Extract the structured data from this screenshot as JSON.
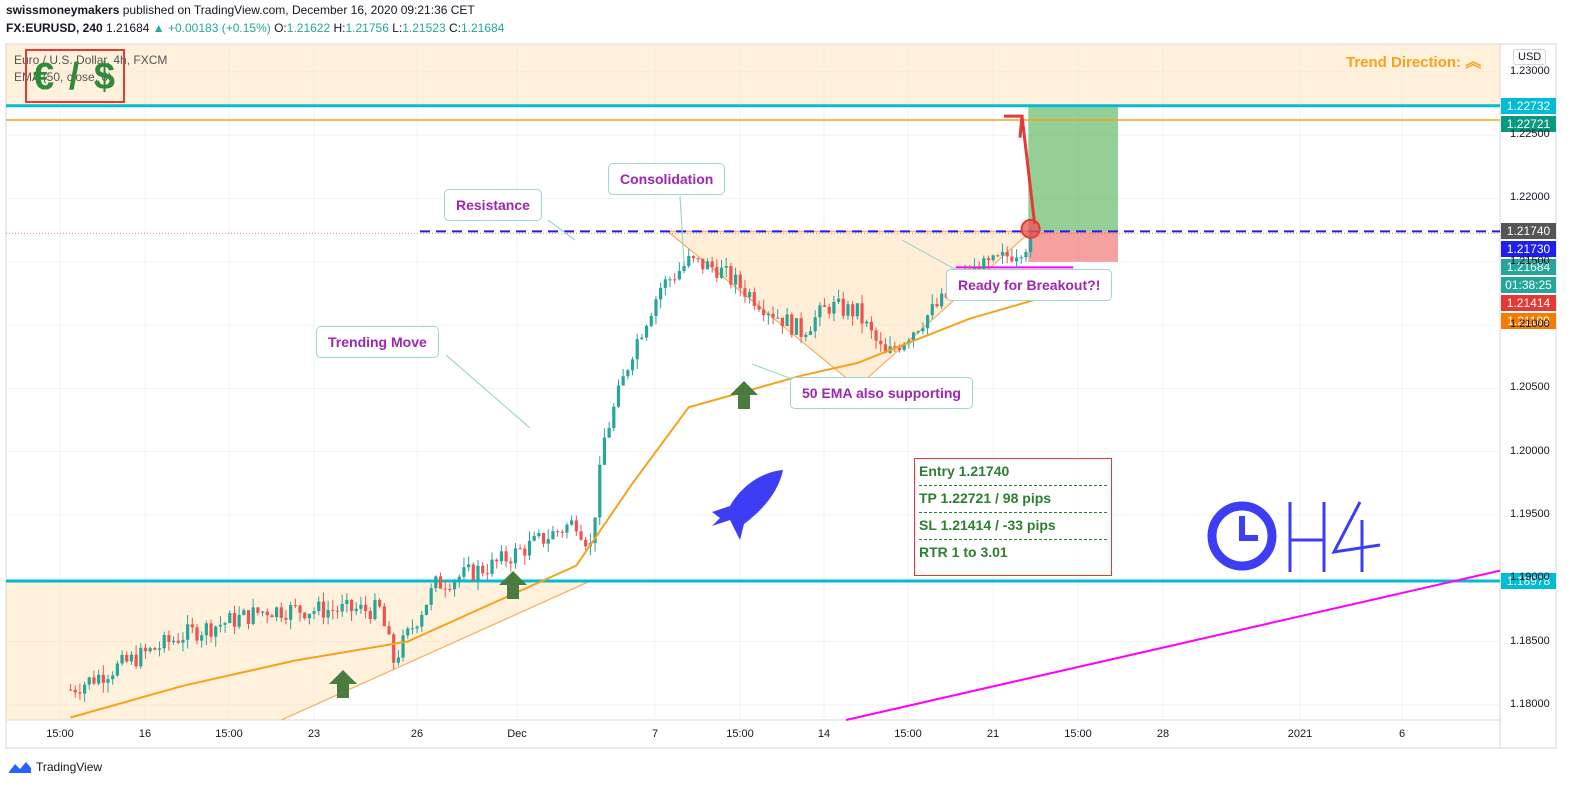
{
  "header": {
    "publisher": "swissmoneymakers",
    "published_text": "published on TradingView.com, December 16, 2020 09:21:36 CET",
    "symbol_line": "FX:EURUSD, 240",
    "last_price": "1.21684",
    "change": "▲ +0.00183 (+0.15%)",
    "ohlc": {
      "o_label": "O:",
      "o": "1.21622",
      "h_label": "H:",
      "h": "1.21756",
      "l_label": "L:",
      "l": "1.21523",
      "c_label": "C:",
      "c": "1.21684"
    }
  },
  "legend": {
    "instrument": "Euro / U.S. Dollar, 4h, FXCM",
    "indicator": "EMA (50, close, 0)",
    "pair_logo": "€ / $"
  },
  "trend_direction": "Trend Direction:",
  "currency_button": "USD",
  "annotations": {
    "resistance": "Resistance",
    "consolidation": "Consolidation",
    "trending_move": "Trending Move",
    "ema_support": "50 EMA also supporting",
    "breakout": "Ready for Breakout?!",
    "timeframe": "H4"
  },
  "trade": {
    "entry": "Entry 1.21740",
    "tp": "TP      1.22721 / 98 pips",
    "sl": "SL      1.21414 / -33 pips",
    "rtr": "RTR   1 to 3.01"
  },
  "footer": {
    "brand": "TradingView"
  },
  "colors": {
    "up": "#26a69a",
    "down": "#ef5350",
    "ema": "#f7a21b",
    "level": "#00bcd4",
    "magenta": "#ff00ff",
    "accent": "#9c27b0"
  },
  "chart_data": {
    "type": "candlestick",
    "ylim": [
      1.1788,
      1.2322
    ],
    "y_ticks": [
      "1.23000",
      "1.22500",
      "1.22000",
      "1.21500",
      "1.21000",
      "1.20500",
      "1.20000",
      "1.19500",
      "1.19000",
      "1.18500",
      "1.18000"
    ],
    "x_ticks": [
      "15:00",
      "16",
      "15:00",
      "23",
      "26",
      "Dec",
      "7",
      "15:00",
      "14",
      "15:00",
      "21",
      "15:00",
      "28",
      "2021",
      "6"
    ],
    "price_labels": [
      {
        "text": "1.22732",
        "color": "#00bcd4",
        "value": 1.22732
      },
      {
        "text": "1.22721",
        "color": "#089981",
        "value": 1.22721
      },
      {
        "text": "1.21740",
        "color": "#555555",
        "value": 1.2174
      },
      {
        "text": "1.21730",
        "color": "#1e1ef0",
        "value": 1.2173
      },
      {
        "text": "1.21684",
        "color": "#26a69a",
        "value": 1.21684
      },
      {
        "text": "01:38:25",
        "color": "#26a69a",
        "value": 1.21575
      },
      {
        "text": "1.21414",
        "color": "#e53935",
        "value": 1.21414
      },
      {
        "text": "1.21189",
        "color": "#f57c00",
        "value": 1.21189
      },
      {
        "text": "1.18978",
        "color": "#00bcd4",
        "value": 1.18978
      }
    ],
    "levels": {
      "resistance_top": 1.22732,
      "support": 1.18978,
      "entry": 1.2174,
      "tp": 1.22721,
      "sl": 1.21414
    },
    "anchors": [
      {
        "date": "Nov 12 00:00",
        "close": 1.1812
      },
      {
        "date": "Nov 16 00:00",
        "close": 1.1855
      },
      {
        "date": "Nov 19 00:00",
        "close": 1.1875
      },
      {
        "date": "Nov 23 00:00",
        "close": 1.1875
      },
      {
        "date": "Nov 23 12:00",
        "close": 1.1835
      },
      {
        "date": "Nov 25 00:00",
        "close": 1.1895
      },
      {
        "date": "Nov 27 00:00",
        "close": 1.191
      },
      {
        "date": "Nov 30 00:00",
        "close": 1.1945
      },
      {
        "date": "Nov 30 12:00",
        "close": 1.1925
      },
      {
        "date": "Dec 1 00:00",
        "close": 1.201
      },
      {
        "date": "Dec 2 00:00",
        "close": 1.208
      },
      {
        "date": "Dec 3 00:00",
        "close": 1.213
      },
      {
        "date": "Dec 4 00:00",
        "close": 1.215
      },
      {
        "date": "Dec 5 00:00",
        "close": 1.2145
      },
      {
        "date": "Dec 7 00:00",
        "close": 1.211
      },
      {
        "date": "Dec 8 00:00",
        "close": 1.2095
      },
      {
        "date": "Dec 9 00:00",
        "close": 1.2115
      },
      {
        "date": "Dec 10 00:00",
        "close": 1.211
      },
      {
        "date": "Dec 11 00:00",
        "close": 1.2075
      },
      {
        "date": "Dec 14 00:00",
        "close": 1.214
      },
      {
        "date": "Dec 15 00:00",
        "close": 1.215
      },
      {
        "date": "Dec 16 08:00",
        "close": 1.21684
      }
    ],
    "ema50": [
      {
        "date": "Nov 12 00:00",
        "value": 1.179
      },
      {
        "date": "Nov 16 00:00",
        "value": 1.1815
      },
      {
        "date": "Nov 20 00:00",
        "value": 1.1835
      },
      {
        "date": "Nov 24 00:00",
        "value": 1.185
      },
      {
        "date": "Nov 27 00:00",
        "value": 1.188
      },
      {
        "date": "Nov 30 00:00",
        "value": 1.191
      },
      {
        "date": "Dec 2 00:00",
        "value": 1.1975
      },
      {
        "date": "Dec 4 00:00",
        "value": 1.2035
      },
      {
        "date": "Dec 8 00:00",
        "value": 1.206
      },
      {
        "date": "Dec 10 00:00",
        "value": 1.207
      },
      {
        "date": "Dec 14 00:00",
        "value": 1.2105
      },
      {
        "date": "Dec 16 08:00",
        "value": 1.212
      }
    ]
  }
}
